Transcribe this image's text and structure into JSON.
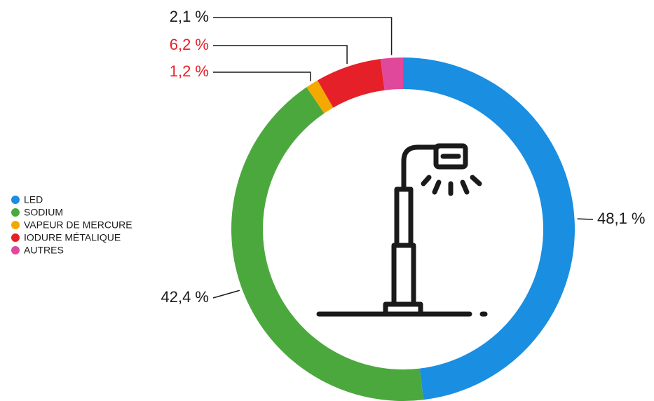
{
  "chart_data": {
    "type": "donut",
    "categories": [
      "LED",
      "SODIUM",
      "VAPEUR DE MERCURE",
      "IODURE MÉTALIQUE",
      "AUTRES"
    ],
    "values": [
      48.1,
      42.4,
      1.2,
      6.2,
      2.1
    ],
    "value_labels": [
      "48,1 %",
      "42,4 %",
      "1,2 %",
      "6,2 %",
      "2,1 %"
    ],
    "colors": [
      "#1a8ee0",
      "#4ba83d",
      "#f4a900",
      "#e62028",
      "#e0489b"
    ],
    "label_colors": [
      "#1a1a1a",
      "#1a1a1a",
      "#e62028",
      "#e62028",
      "#1a1a1a"
    ],
    "legend": "left"
  }
}
